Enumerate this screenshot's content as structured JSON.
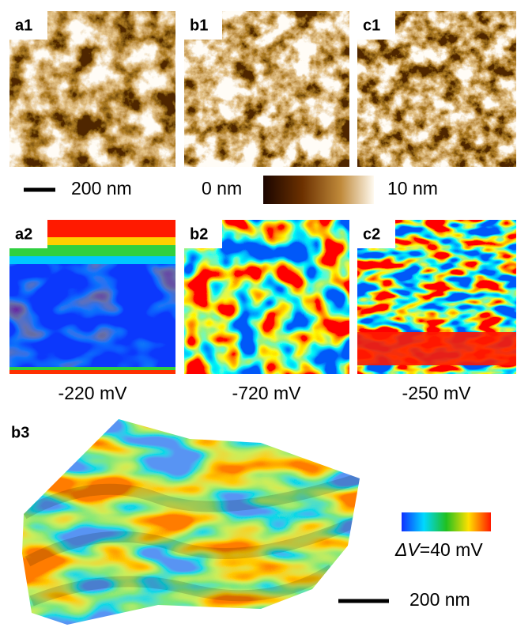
{
  "panels_top": [
    {
      "label": "a1"
    },
    {
      "label": "b1"
    },
    {
      "label": "c1"
    }
  ],
  "scale_bar_top": "200 nm",
  "height_colorbar": {
    "min": "0 nm",
    "max": "10 nm"
  },
  "panels_middle": [
    {
      "label": "a2",
      "caption": "-220 mV"
    },
    {
      "label": "b2",
      "caption": "-720 mV"
    },
    {
      "label": "c2",
      "caption": "-250 mV"
    }
  ],
  "panel_3d": {
    "label": "b3"
  },
  "potential_colorbar": {
    "symbol": "ΔV",
    "text": "=40 mV"
  },
  "scale_bar_bottom": "200 nm"
}
